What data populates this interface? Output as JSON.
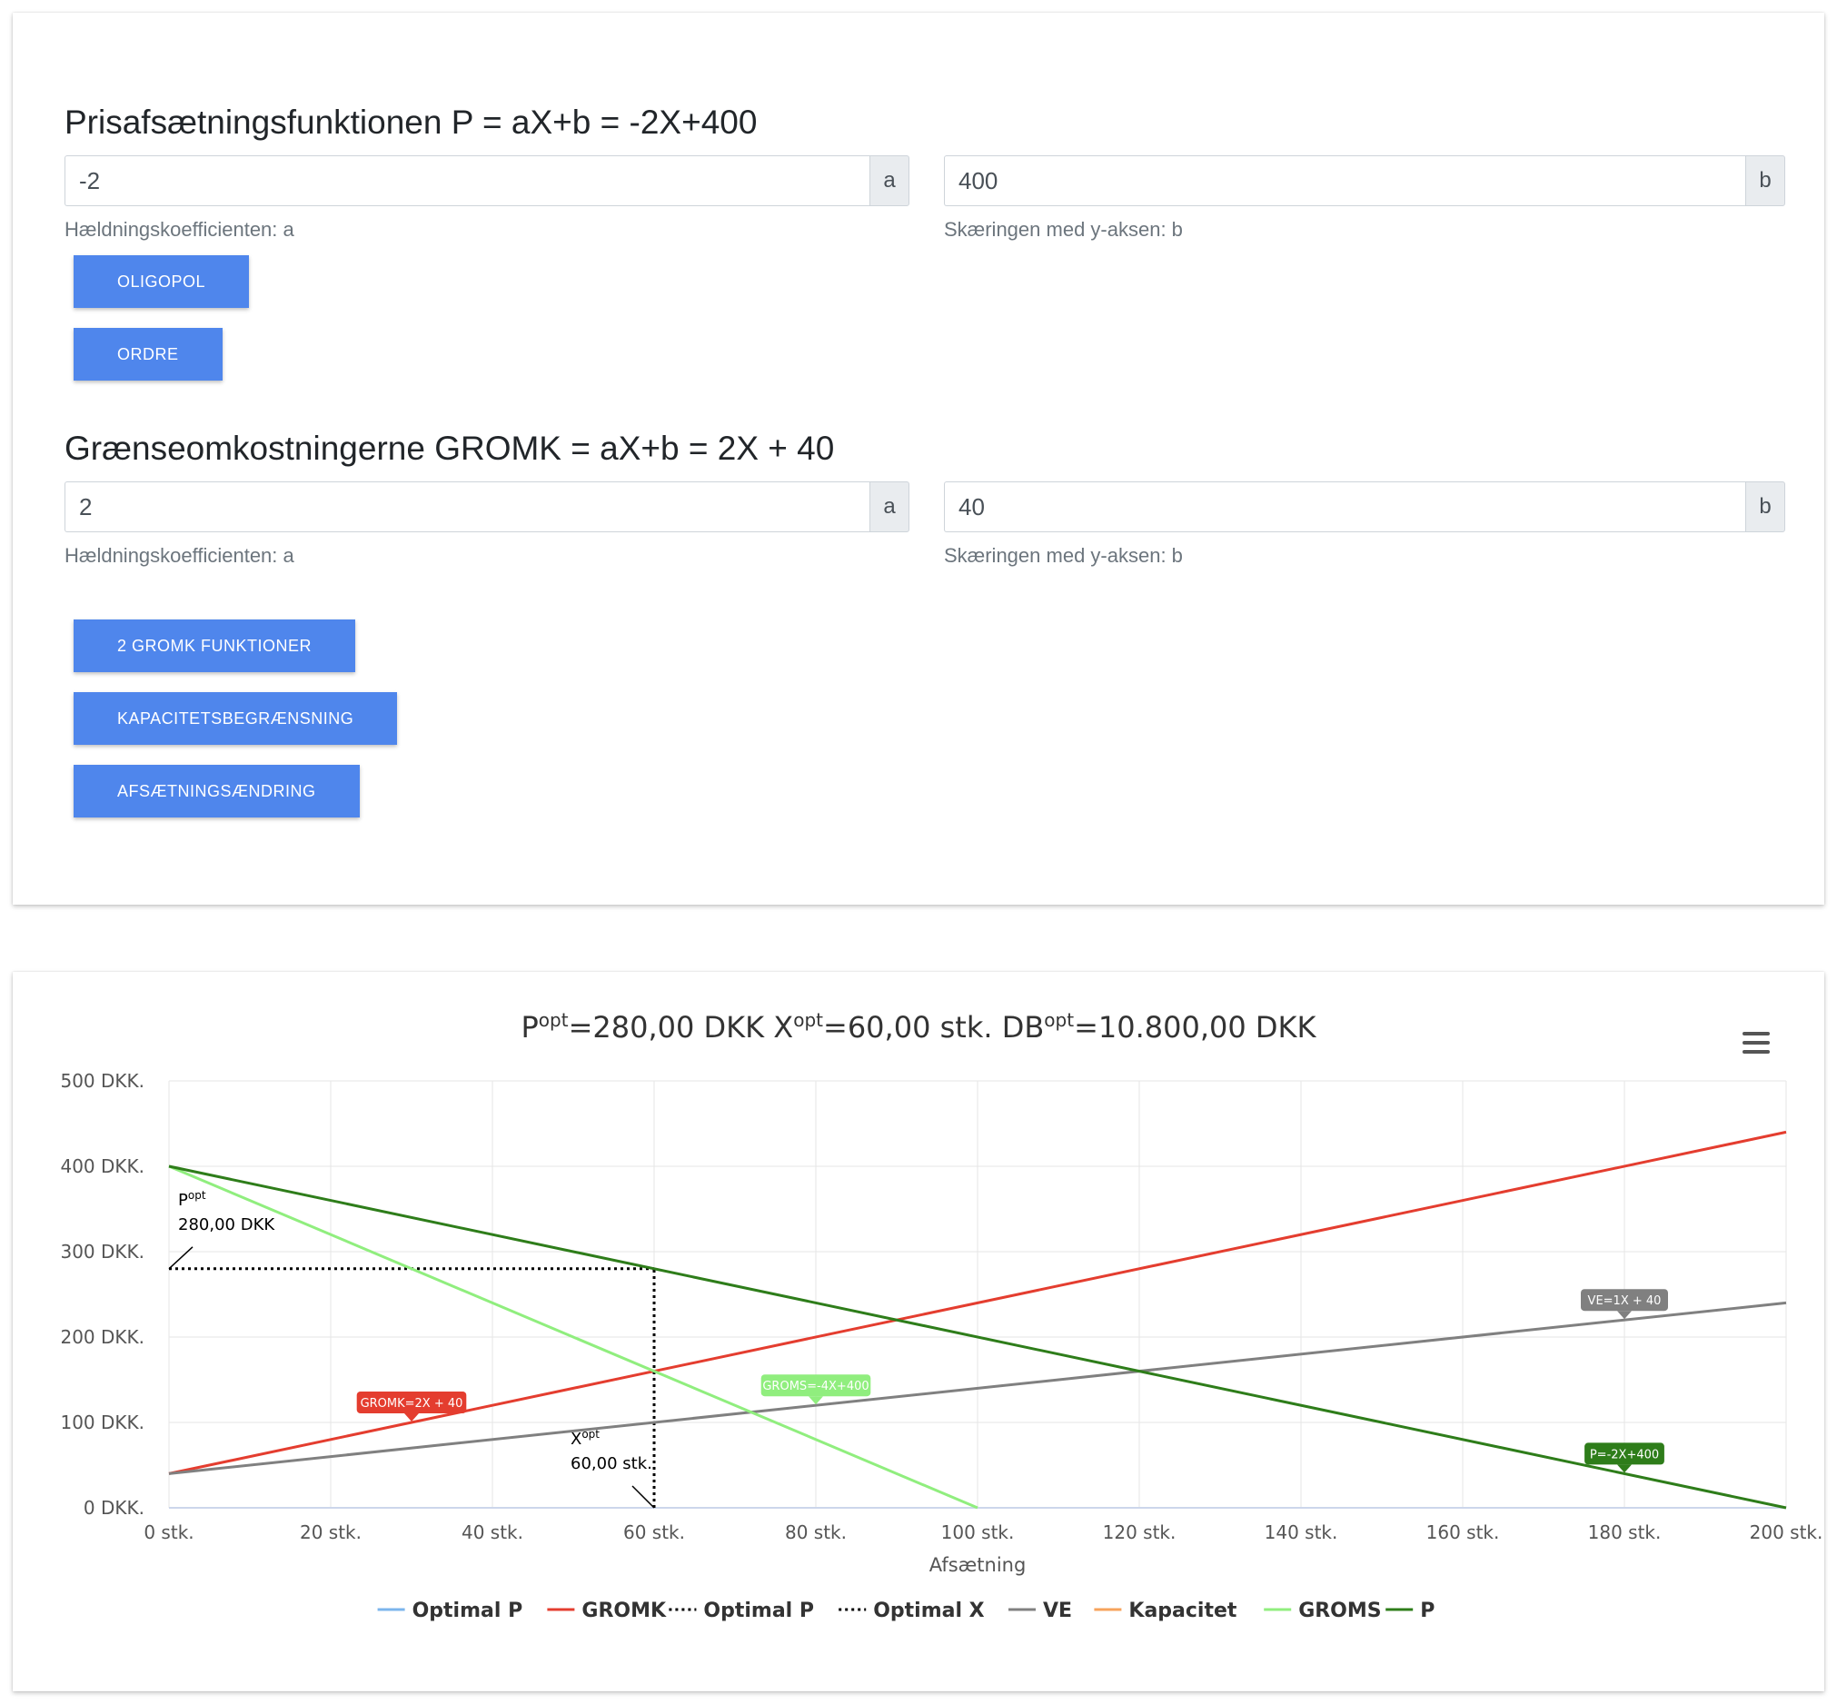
{
  "demand": {
    "title": "Prisafsætningsfunktionen P = aX+b = -2X+400",
    "a_value": "-2",
    "a_addon": "a",
    "a_help": "Hældningskoefficienten: a",
    "b_value": "400",
    "b_addon": "b",
    "b_help": "Skæringen med y-aksen: b",
    "buttons": [
      "OLIGOPOL",
      "ORDRE"
    ]
  },
  "cost": {
    "title": "Grænseomkostningerne GROMK = aX+b = 2X + 40",
    "a_value": "2",
    "a_addon": "a",
    "a_help": "Hældningskoefficienten: a",
    "b_value": "40",
    "b_addon": "b",
    "b_help": "Skæringen med y-aksen: b",
    "buttons": [
      "2 GROMK FUNKTIONER",
      "KAPACITETSBEGRÆNSNING",
      "AFSÆTNINGSÆNDRING"
    ]
  },
  "chart_data": {
    "type": "line",
    "title_parts": [
      {
        "text": "P"
      },
      {
        "sup": "opt"
      },
      {
        "text": "=280,00 DKK X"
      },
      {
        "sup": "opt"
      },
      {
        "text": "=60,00 stk. DB"
      },
      {
        "sup": "opt"
      },
      {
        "text": "=10.800,00 DKK"
      }
    ],
    "menu_icon": "hamburger-menu-icon",
    "xlabel": "Afsætning",
    "xlim": [
      0,
      200
    ],
    "ylim": [
      0,
      500
    ],
    "xticks": [
      0,
      20,
      40,
      60,
      80,
      100,
      120,
      140,
      160,
      180,
      200
    ],
    "yticks": [
      0,
      100,
      200,
      300,
      400,
      500
    ],
    "x_unit": " stk.",
    "y_unit": " DKK.",
    "grid": true,
    "legend_position": "bottom-center",
    "series": [
      {
        "name": "Optimal P",
        "color": "#7cb5ec",
        "dash": false,
        "points": []
      },
      {
        "name": "GROMK",
        "color": "#e43d2f",
        "dash": false,
        "points": [
          [
            0,
            40
          ],
          [
            200,
            440
          ]
        ]
      },
      {
        "name": "Optimal P",
        "color": "#000000",
        "dash": true,
        "points": [
          [
            0,
            280
          ],
          [
            60,
            280
          ]
        ]
      },
      {
        "name": "Optimal X",
        "color": "#000000",
        "dash": true,
        "points": [
          [
            60,
            0
          ],
          [
            60,
            280
          ]
        ]
      },
      {
        "name": "VE",
        "color": "#808080",
        "dash": false,
        "points": [
          [
            0,
            40
          ],
          [
            200,
            240
          ]
        ]
      },
      {
        "name": "Kapacitet",
        "color": "#f7a35c",
        "dash": false,
        "points": []
      },
      {
        "name": "GROMS",
        "color": "#90ee7e",
        "dash": false,
        "points": [
          [
            0,
            400
          ],
          [
            100,
            0
          ]
        ]
      },
      {
        "name": "P",
        "color": "#2e7d1a",
        "dash": false,
        "points": [
          [
            0,
            400
          ],
          [
            200,
            0
          ]
        ]
      }
    ],
    "flags": [
      {
        "text": "GROMK=2X + 40",
        "x": 30,
        "y": 100,
        "color": "#e43d2f"
      },
      {
        "text": "GROMS=-4X+400",
        "x": 80,
        "y": 120,
        "color": "#90ee7e",
        "dark_text": true
      },
      {
        "text": "VE=1X + 40",
        "x": 180,
        "y": 220,
        "color": "#808080"
      },
      {
        "text": "P=-2X+400",
        "x": 180,
        "y": 40,
        "color": "#2e7d1a"
      }
    ],
    "annotations": [
      {
        "label": "P",
        "sup": "opt",
        "value": "280,00 DKK",
        "x": 0,
        "y": 280
      },
      {
        "label": "X",
        "sup": "opt",
        "value": "60,00 stk.",
        "x": 60,
        "y": 0
      }
    ]
  }
}
